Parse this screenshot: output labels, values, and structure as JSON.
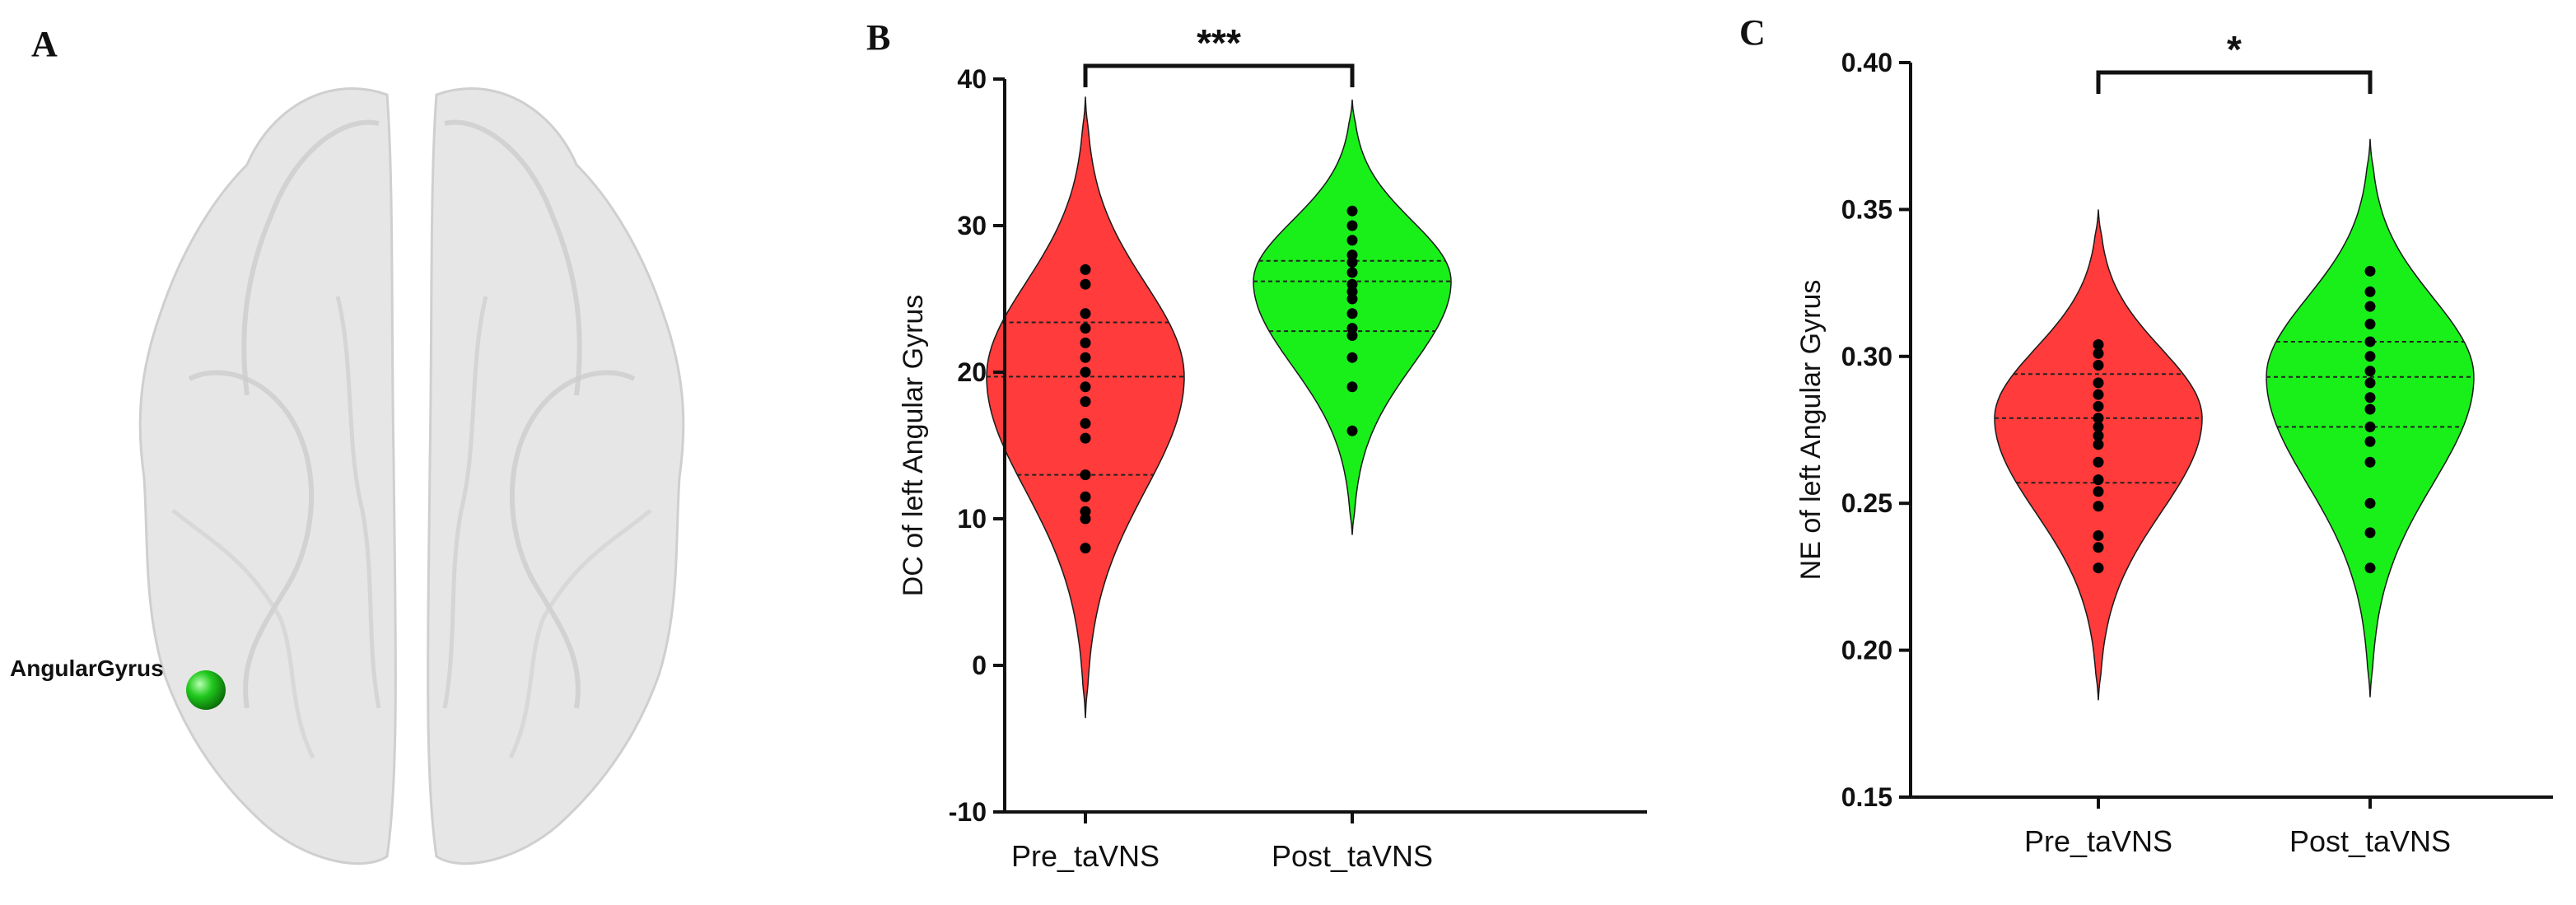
{
  "panels": {
    "a": {
      "letter": "A",
      "region_label": "AngularGyrus",
      "colors": {
        "sphere": "#22c91e",
        "brain": "#d9d9d9"
      }
    },
    "b": {
      "letter": "B"
    },
    "c": {
      "letter": "C"
    }
  },
  "chart_data": [
    {
      "type": "violin",
      "panel": "B",
      "ylabel": "DC of left Angular Gyrus",
      "xlabel": "",
      "ylim": [
        -10,
        40
      ],
      "yticks": [
        -10,
        0,
        10,
        20,
        30,
        40
      ],
      "categories": [
        "Pre_taVNS",
        "Post_taVNS"
      ],
      "significance": "***",
      "series": [
        {
          "name": "Pre_taVNS",
          "color": "#ff3b3b",
          "violin_range": [
            -3.6,
            38.8
          ],
          "median": 19.7,
          "quartiles": [
            13.0,
            23.4
          ],
          "points": [
            27.0,
            26.0,
            24.0,
            23.0,
            22.0,
            21.0,
            20.0,
            19.0,
            18.0,
            16.5,
            15.5,
            13.0,
            11.5,
            10.5,
            10.0,
            8.0
          ]
        },
        {
          "name": "Post_taVNS",
          "color": "#19f019",
          "violin_range": [
            8.9,
            38.6
          ],
          "median": 26.2,
          "quartiles": [
            22.8,
            27.6
          ],
          "points": [
            31.0,
            30.0,
            29.0,
            28.0,
            27.5,
            26.8,
            26.0,
            25.5,
            25.0,
            24.0,
            23.0,
            22.5,
            21.0,
            19.0,
            16.0
          ]
        }
      ]
    },
    {
      "type": "violin",
      "panel": "C",
      "ylabel": "NE of left Angular Gyrus",
      "xlabel": "",
      "ylim": [
        0.15,
        0.4
      ],
      "yticks": [
        0.15,
        0.2,
        0.25,
        0.3,
        0.35,
        0.4
      ],
      "categories": [
        "Pre_taVNS",
        "Post_taVNS"
      ],
      "significance": "*",
      "series": [
        {
          "name": "Pre_taVNS",
          "color": "#ff3b3b",
          "violin_range": [
            0.183,
            0.35
          ],
          "median": 0.279,
          "quartiles": [
            0.257,
            0.294
          ],
          "points": [
            0.304,
            0.301,
            0.297,
            0.291,
            0.287,
            0.283,
            0.279,
            0.276,
            0.273,
            0.27,
            0.264,
            0.258,
            0.254,
            0.249,
            0.239,
            0.235,
            0.228
          ]
        },
        {
          "name": "Post_taVNS",
          "color": "#19f019",
          "violin_range": [
            0.184,
            0.374
          ],
          "median": 0.293,
          "quartiles": [
            0.276,
            0.305
          ],
          "points": [
            0.329,
            0.322,
            0.317,
            0.311,
            0.305,
            0.3,
            0.295,
            0.291,
            0.286,
            0.282,
            0.276,
            0.271,
            0.264,
            0.25,
            0.24,
            0.228
          ]
        }
      ]
    }
  ]
}
